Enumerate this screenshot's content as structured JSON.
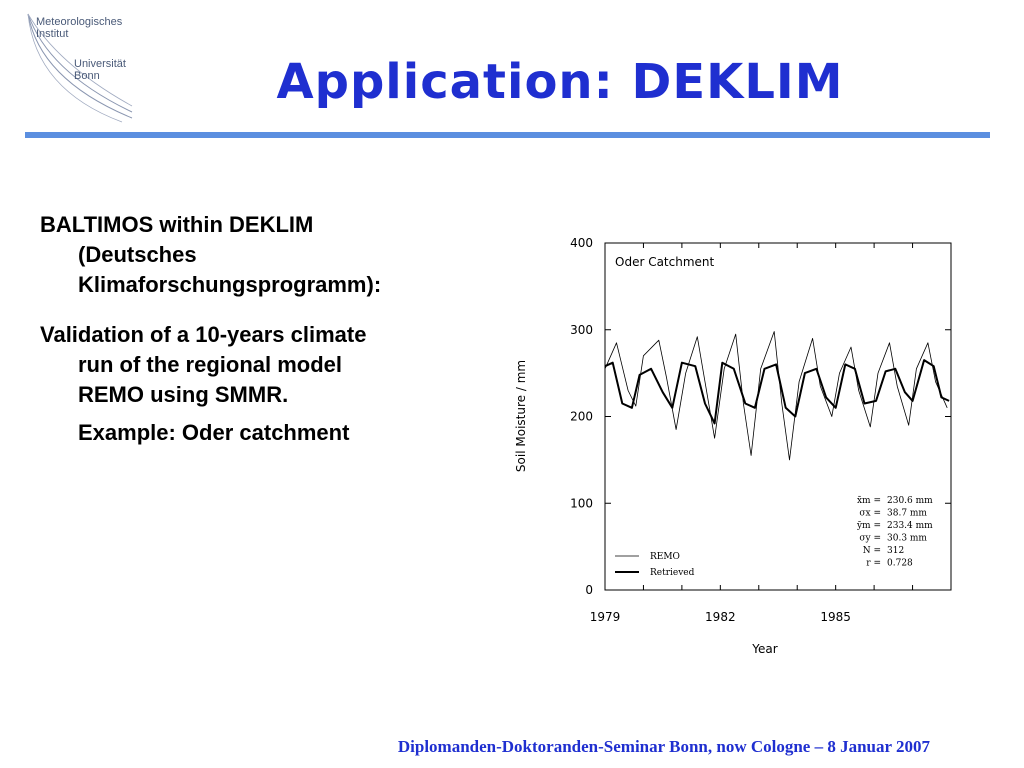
{
  "logo": {
    "line1": "Meteorologisches",
    "line2": "Institut",
    "line3": "Universität",
    "line4": "Bonn"
  },
  "slide": {
    "title": "Application: DEKLIM",
    "para1_line1": "BALTIMOS within DEKLIM",
    "para1_line2": "(Deutsches",
    "para1_line3": "Klimaforschungsprogramm):",
    "para2_line1": "Validation of a 10-years climate",
    "para2_line2": "run of the regional model",
    "para2_line3": "REMO using SMMR.",
    "para2_sub": "Example: Oder catchment",
    "footer": "Diplomanden-Doktoranden-Seminar Bonn, now Cologne – 8 Januar 2007"
  },
  "colors": {
    "title": "#1f2fd0",
    "rule": "#5b8fe0",
    "footer": "#1f2fd0"
  },
  "chart_data": {
    "type": "line",
    "title": "Oder Catchment",
    "xlabel": "Year",
    "ylabel": "Soil Moisture / mm",
    "xlim": [
      1979,
      1988
    ],
    "ylim": [
      0,
      400
    ],
    "xticks": [
      "1979",
      "1982",
      "1985"
    ],
    "yticks": [
      "0",
      "100",
      "200",
      "300",
      "400"
    ],
    "legend_position": "bottom-left",
    "series": [
      {
        "name": "REMO",
        "x": [
          1979.0,
          1979.3,
          1979.6,
          1979.8,
          1980.0,
          1980.4,
          1980.6,
          1980.85,
          1981.1,
          1981.4,
          1981.6,
          1981.85,
          1982.1,
          1982.4,
          1982.6,
          1982.8,
          1983.05,
          1983.4,
          1983.6,
          1983.8,
          1984.05,
          1984.4,
          1984.6,
          1984.9,
          1985.1,
          1985.4,
          1985.6,
          1985.9,
          1986.1,
          1986.4,
          1986.6,
          1986.9,
          1987.1,
          1987.4,
          1987.6,
          1987.9
        ],
        "values": [
          255,
          285,
          230,
          212,
          270,
          288,
          245,
          185,
          250,
          292,
          240,
          175,
          255,
          295,
          215,
          155,
          255,
          298,
          215,
          150,
          240,
          290,
          235,
          200,
          250,
          280,
          230,
          188,
          250,
          285,
          235,
          190,
          255,
          285,
          240,
          210
        ]
      },
      {
        "name": "Retrieved",
        "x": [
          1979.0,
          1979.2,
          1979.45,
          1979.7,
          1979.9,
          1980.2,
          1980.5,
          1980.75,
          1981.0,
          1981.35,
          1981.6,
          1981.85,
          1982.05,
          1982.35,
          1982.65,
          1982.9,
          1983.15,
          1983.45,
          1983.7,
          1983.95,
          1984.2,
          1984.5,
          1984.75,
          1985.0,
          1985.25,
          1985.5,
          1985.75,
          1986.05,
          1986.3,
          1986.55,
          1986.8,
          1987.0,
          1987.3,
          1987.55,
          1987.75,
          1987.95
        ],
        "values": [
          258,
          262,
          215,
          210,
          248,
          255,
          228,
          210,
          262,
          258,
          215,
          192,
          262,
          255,
          215,
          210,
          255,
          260,
          210,
          200,
          250,
          255,
          222,
          210,
          260,
          255,
          215,
          218,
          252,
          255,
          228,
          218,
          265,
          258,
          222,
          218
        ]
      }
    ],
    "annotations": [
      {
        "label": "x̄m =",
        "value": "230.6 mm"
      },
      {
        "label": "σx =",
        "value": "38.7 mm"
      },
      {
        "label": "ȳm =",
        "value": "233.4 mm"
      },
      {
        "label": "σy =",
        "value": "30.3 mm"
      },
      {
        "label": "N =",
        "value": "312"
      },
      {
        "label": "r =",
        "value": "0.728"
      }
    ]
  }
}
